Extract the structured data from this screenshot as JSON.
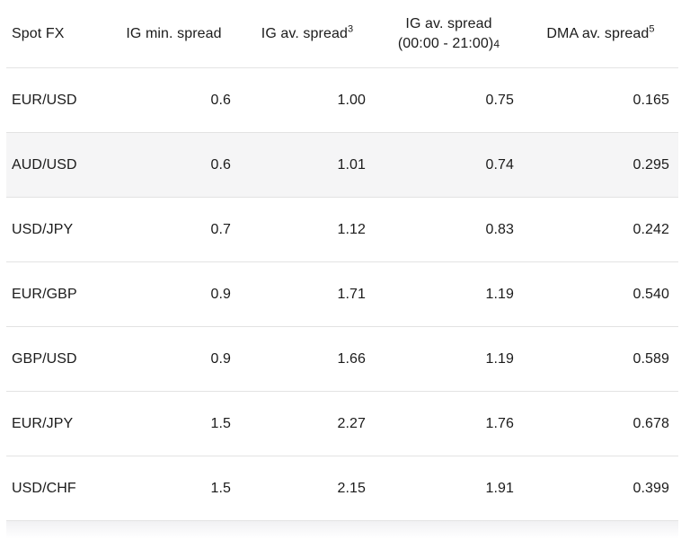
{
  "table_meta": {
    "name": "Spot FX spreads comparison table",
    "highlighted_row": "AUD/USD",
    "colors": {
      "text": "#1b1b1b",
      "divider": "#e3e3e3",
      "highlight_row_bg": "#f5f5f6",
      "background": "#ffffff"
    }
  },
  "header": {
    "col1": "Spot FX",
    "col2": "IG min. spread",
    "col3": {
      "text": "IG av. spread",
      "sup": "3"
    },
    "col4": {
      "line1": "IG av. spread",
      "line2": "(00:00 - 21:00)",
      "sub": "4"
    },
    "col5": {
      "text": "DMA av. spread",
      "sup": "5"
    }
  },
  "chart_data": {
    "type": "table",
    "columns": [
      "Spot FX",
      "IG min. spread",
      "IG av. spread³",
      "IG av. spread (00:00 - 21:00)4",
      "DMA av. spread⁵"
    ],
    "rows": [
      [
        "EUR/USD",
        "0.6",
        "1.00",
        "0.75",
        "0.165"
      ],
      [
        "AUD/USD",
        "0.6",
        "1.01",
        "0.74",
        "0.295"
      ],
      [
        "USD/JPY",
        "0.7",
        "1.12",
        "0.83",
        "0.242"
      ],
      [
        "EUR/GBP",
        "0.9",
        "1.71",
        "1.19",
        "0.540"
      ],
      [
        "GBP/USD",
        "0.9",
        "1.66",
        "1.19",
        "0.589"
      ],
      [
        "EUR/JPY",
        "1.5",
        "2.27",
        "1.76",
        "0.678"
      ],
      [
        "USD/CHF",
        "1.5",
        "2.15",
        "1.91",
        "0.399"
      ]
    ]
  }
}
